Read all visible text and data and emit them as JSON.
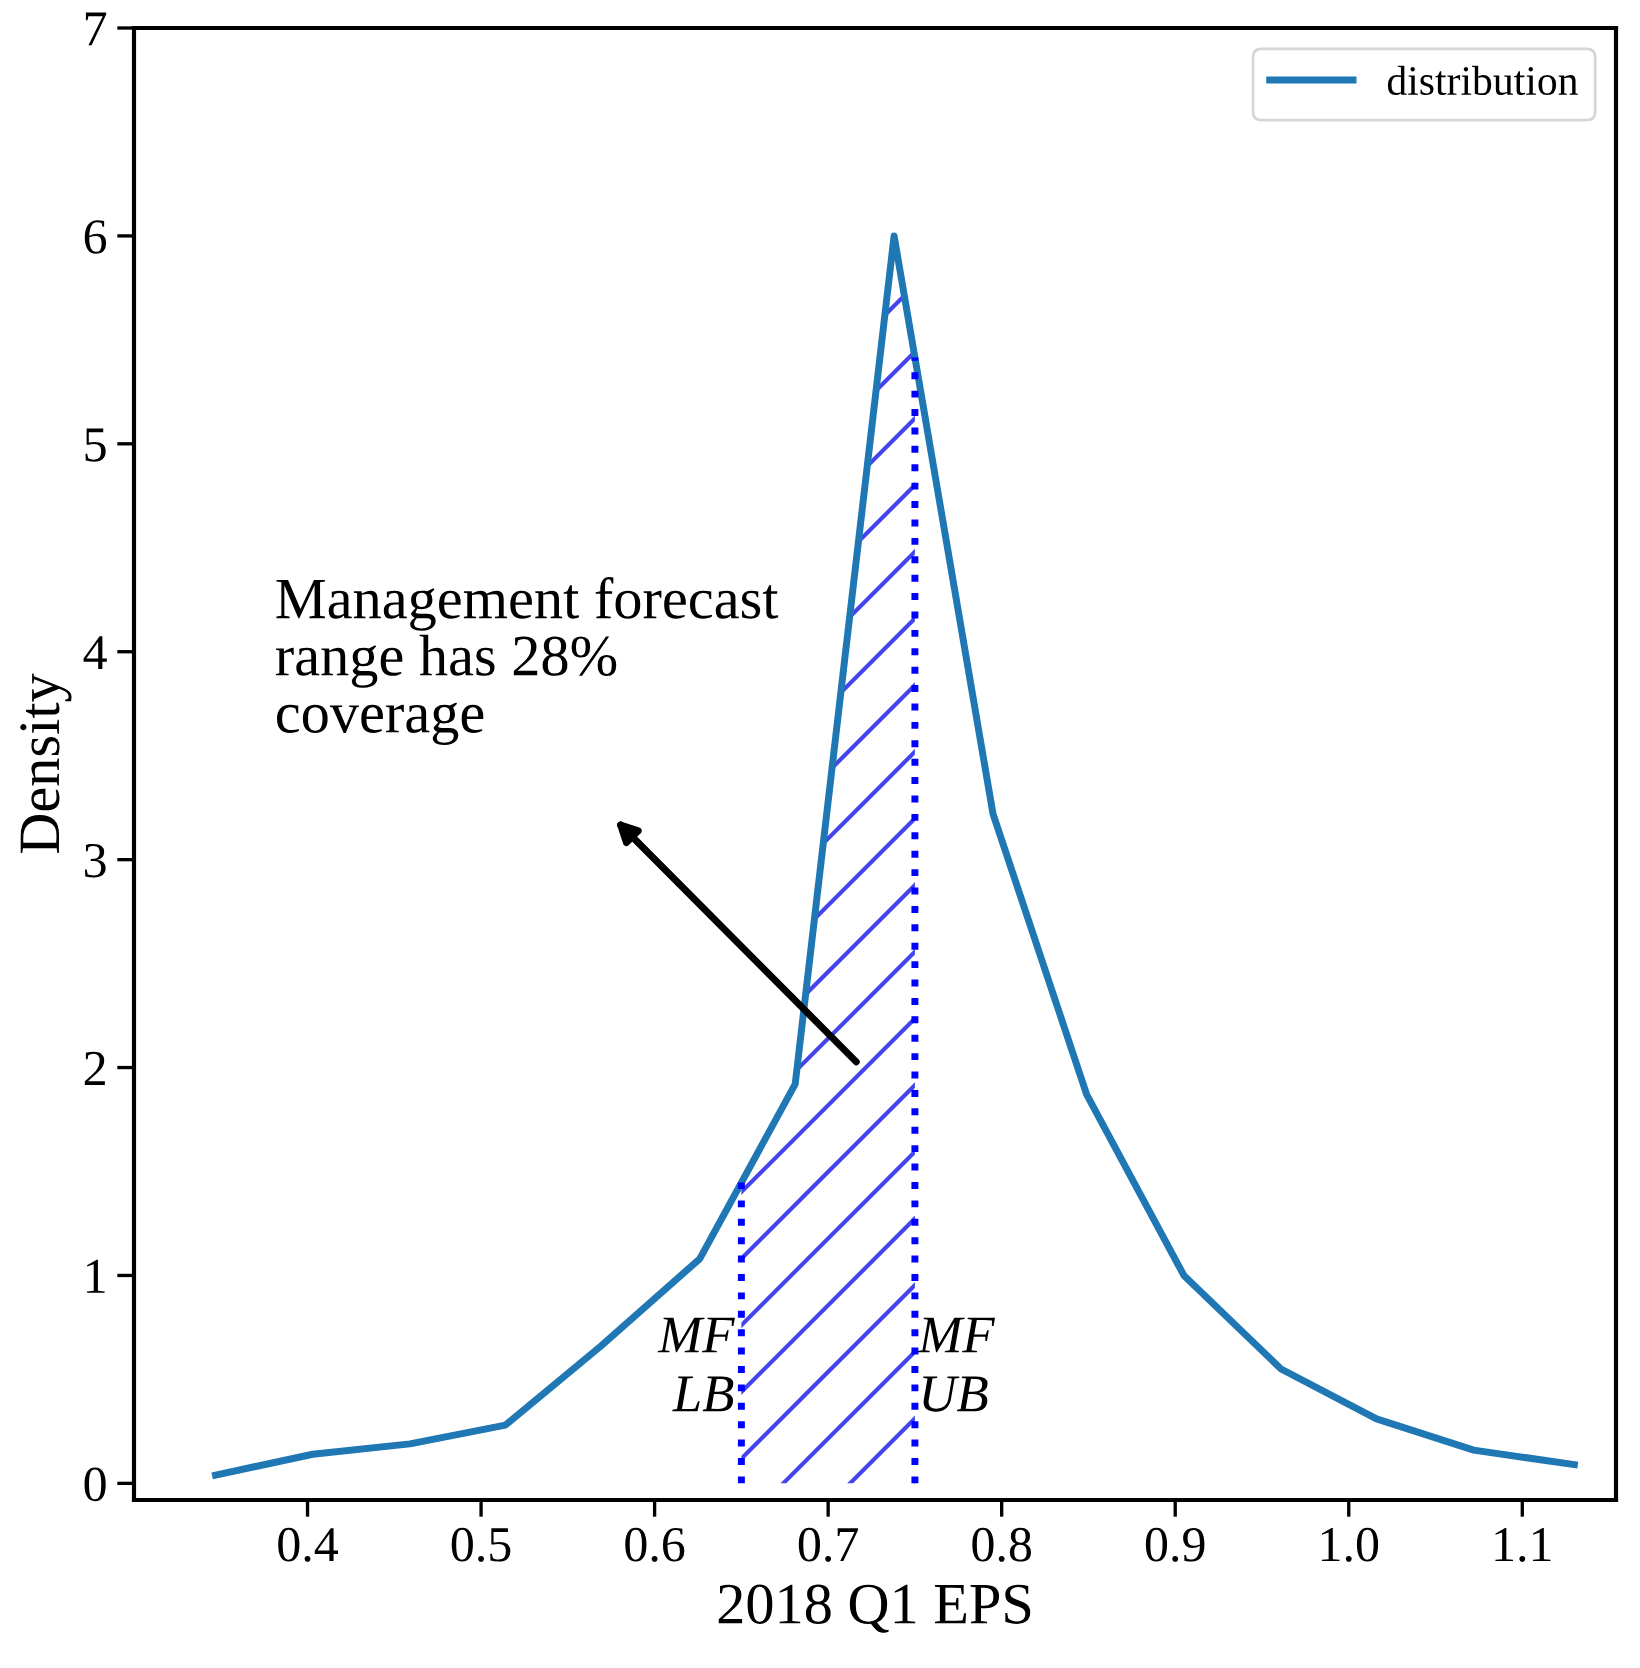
{
  "chart_data": {
    "type": "line",
    "xlabel": "2018 Q1 EPS",
    "ylabel": "Density",
    "x": [
      0.347,
      0.403,
      0.459,
      0.514,
      0.569,
      0.626,
      0.681,
      0.738,
      0.795,
      0.849,
      0.905,
      0.961,
      1.016,
      1.072,
      1.13
    ],
    "series": [
      {
        "name": "distribution",
        "color": "#1f77b4",
        "values": [
          0.04,
          0.14,
          0.19,
          0.28,
          0.66,
          1.08,
          1.92,
          6.0,
          3.22,
          1.87,
          1.0,
          0.55,
          0.31,
          0.16,
          0.09
        ]
      },
      {
        "type": "area",
        "color": "#4444ee",
        "x": [
          0.65,
          0.681,
          0.738,
          0.75
        ],
        "values": [
          1.46,
          1.92,
          6.0,
          5.45
        ]
      }
    ],
    "xlim": [
      0.3,
      1.154
    ],
    "ylim": [
      -0.08,
      7
    ],
    "xticks": [
      0.4,
      0.5,
      0.6,
      0.7,
      0.8,
      0.9,
      {
        "value": 1.0,
        "label": "1.0"
      },
      1.1
    ],
    "yticks": [
      0,
      1,
      2,
      3,
      4,
      5,
      6,
      7
    ],
    "ref_lines": [
      {
        "axis": "x",
        "value": 0.65,
        "label": "MF\nLB",
        "color": "#0000ff",
        "line_style": "dotted"
      },
      {
        "axis": "x",
        "value": 0.75,
        "label": "MF\nUB",
        "color": "#0000ff",
        "line_style": "dotted"
      }
    ],
    "annotations": [
      "Management forecast\nrange has 28%\ncoverage"
    ],
    "legend": "top right",
    "grid": false,
    "marker": "none",
    "line_style": "solid"
  }
}
